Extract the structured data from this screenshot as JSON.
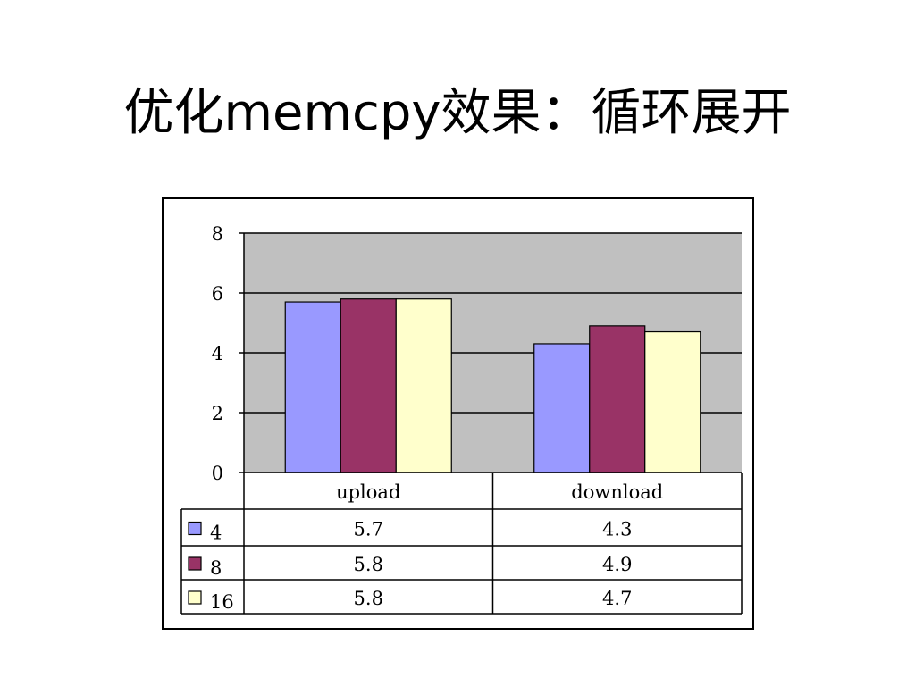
{
  "slide": {
    "title": "优化memcpy效果：循环展开"
  },
  "colors": {
    "plot_background": "#c0c0c0",
    "series_4": "#9999ff",
    "series_8": "#993366",
    "series_16": "#ffffcc"
  },
  "chart_data": {
    "type": "bar",
    "title": "",
    "xlabel": "",
    "ylabel": "",
    "categories": [
      "upload",
      "download"
    ],
    "series": [
      {
        "name": "4",
        "values": [
          5.7,
          4.3
        ],
        "labels": [
          "5.7",
          "4.3"
        ]
      },
      {
        "name": "8",
        "values": [
          5.8,
          4.9
        ],
        "labels": [
          "5.8",
          "4.9"
        ]
      },
      {
        "name": "16",
        "values": [
          5.8,
          4.7
        ],
        "labels": [
          "5.8",
          "4.7"
        ]
      }
    ],
    "ylim": [
      0,
      8
    ],
    "yticks": [
      0,
      2,
      4,
      6,
      8
    ],
    "grid": true,
    "legend": "data table below chart"
  }
}
